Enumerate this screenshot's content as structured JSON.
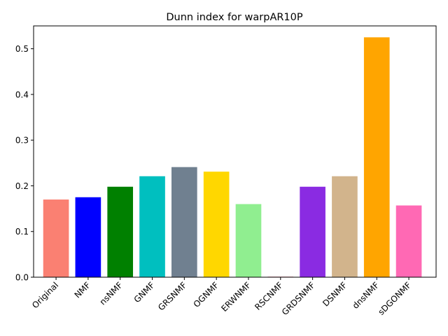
{
  "chart_data": {
    "type": "bar",
    "title": "Dunn index for warpAR10P",
    "xlabel": "",
    "ylabel": "",
    "categories": [
      "Original",
      "NMF",
      "nsNMF",
      "GNMF",
      "GRSNMF",
      "OGNMF",
      "ERWNMF",
      "RSCNMF",
      "GRDSNMF",
      "DSNMF",
      "dnsNMF",
      "sDGONMF"
    ],
    "values": [
      0.17,
      0.175,
      0.198,
      0.221,
      0.241,
      0.231,
      0.16,
      0.001,
      0.198,
      0.221,
      0.525,
      0.157
    ],
    "colors": [
      "#fa8072",
      "#0000ff",
      "#008000",
      "#00bfbf",
      "#708090",
      "#ffd700",
      "#90ee90",
      "#dc143c",
      "#8a2be2",
      "#d2b48c",
      "#ffa500",
      "#ff69b4"
    ],
    "ylim": [
      0,
      0.55
    ],
    "yticks": [
      0.0,
      0.1,
      0.2,
      0.3,
      0.4,
      0.5
    ],
    "ytick_labels": [
      "0.0",
      "0.1",
      "0.2",
      "0.3",
      "0.4",
      "0.5"
    ],
    "grid": false,
    "legend": "none"
  }
}
